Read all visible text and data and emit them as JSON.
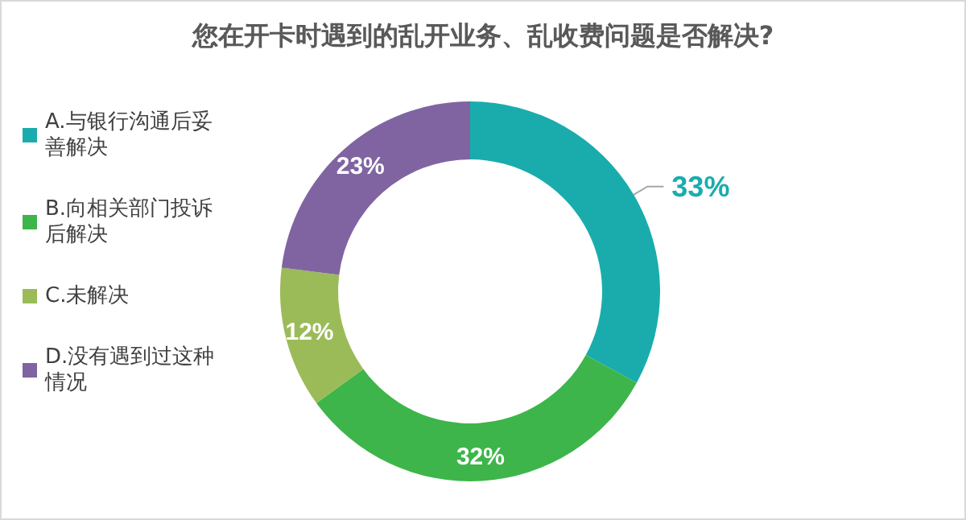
{
  "chart_data": {
    "type": "donut",
    "title": "您在开卡时遇到的乱开业务、乱收费问题是否解决?",
    "categories": [
      "A.与银行沟通后妥善解决",
      "B.向相关部门投诉后解决",
      "C.未解决",
      "D.没有遇到过这种情况"
    ],
    "values": [
      33,
      32,
      12,
      23
    ],
    "colors": [
      "#1aacac",
      "#3db54a",
      "#9bbb59",
      "#8064a2"
    ],
    "value_labels": [
      "33%",
      "32%",
      "12%",
      "23%"
    ],
    "legend": "left"
  }
}
